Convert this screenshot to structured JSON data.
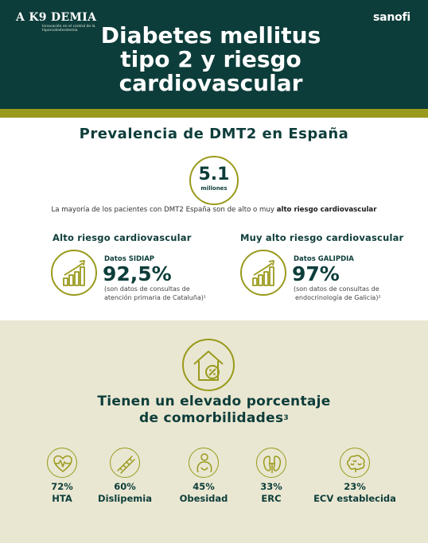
{
  "header": {
    "logo_main": "A K9 DEMIA",
    "logo_sub": "Innovación en el control de la hipercolesterolemia",
    "brand": "sanofi",
    "title": "Diabetes mellitus tipo 2 y riesgo cardiovascular"
  },
  "prevalence": {
    "title": "Prevalencia de DMT2 en España",
    "value": "5.1",
    "unit": "millones",
    "majority_text": "La mayoría de los pacientes con DMT2 España son de alto o muy",
    "majority_bold": "alto riesgo cardiovascular"
  },
  "high_risk": {
    "heading": "Alto riesgo cardiovascular",
    "source": "Datos SIDIAP",
    "percent": "92,5%",
    "note_line1": "(son datos de consultas de",
    "note_line2": "atención primaria de Cataluña)¹",
    "icon": "bar-chart-up-arrow-icon"
  },
  "very_high_risk": {
    "heading": "Muy alto riesgo cardiovascular",
    "source": "Datos GALIPDIA",
    "percent": "97%",
    "note_line1": "(son datos de consultas de",
    "note_line2": "endocrinología de Galicia)²",
    "icon": "bar-chart-up-arrow-icon"
  },
  "comorbidities": {
    "title_line1": "Tienen un elevado porcentaje",
    "title_line2": "de comorbilidades",
    "title_sup": "3",
    "icon": "house-percent-arrow-icon",
    "items": [
      {
        "percent": "72%",
        "label": "HTA",
        "icon": "heart-pulse-icon"
      },
      {
        "percent": "60%",
        "label": "Dislipemia",
        "icon": "artery-plaque-icon"
      },
      {
        "percent": "45%",
        "label": "Obesidad",
        "icon": "obese-person-icon"
      },
      {
        "percent": "33%",
        "label": "ERC",
        "icon": "kidneys-icon"
      },
      {
        "percent": "23%",
        "label": "ECV establecida",
        "icon": "brain-icon"
      }
    ]
  },
  "colors": {
    "dark_green": "#0d3d3a",
    "olive": "#9a9a1c",
    "beige": "#e9e7d2"
  }
}
